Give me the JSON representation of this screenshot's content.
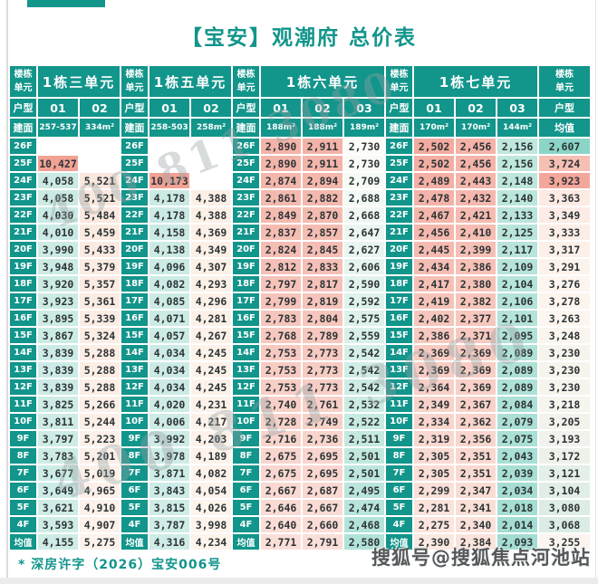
{
  "page": {
    "title": "【宝安】观潮府 总价表",
    "footnote": "* 深房许字（2026）宝安006号",
    "diagonal_watermark": "400 811 3080",
    "stamp_watermark": "搜狐号@搜狐焦点河池站"
  },
  "colors": {
    "teal": "#12958b",
    "title_text": "#12958b",
    "number_text": "#2e3436",
    "outlier_bg": "#f1a295",
    "empty_bg": "#ffffff",
    "avg_scale": {
      "low": "#8bd5c7",
      "mid": "#fdf6f0",
      "high": "#f3a79a"
    }
  },
  "table": {
    "corner_label_lines": [
      "楼栋",
      "单元"
    ],
    "row2_label": "户型",
    "row3_label": "建面",
    "avg_header_label": "均值",
    "avg_row_label": "均值",
    "floors": [
      "26F",
      "25F",
      "24F",
      "23F",
      "22F",
      "21F",
      "20F",
      "19F",
      "18F",
      "17F",
      "16F",
      "15F",
      "14F",
      "13F",
      "12F",
      "11F",
      "10F",
      "9F",
      "8F",
      "7F",
      "6F",
      "5F",
      "4F"
    ],
    "groups": [
      {
        "name": "1栋三单元",
        "units": [
          "01",
          "02"
        ],
        "areas": [
          "257-537",
          "334m²"
        ],
        "col_colors": [
          {
            "top": "#cbeae4",
            "bottom": "#cfece7"
          },
          {
            "top": "#fae7dd",
            "bottom": "#fdf3ec"
          }
        ],
        "columns": [
          [
            "",
            "10,427",
            "4,058",
            "4,058",
            "4,030",
            "4,010",
            "3,990",
            "3,948",
            "3,920",
            "3,923",
            "3,895",
            "3,867",
            "3,839",
            "3,839",
            "3,839",
            "3,825",
            "3,811",
            "3,797",
            "3,783",
            "3,677",
            "3,649",
            "3,621",
            "3,593",
            "4,155"
          ],
          [
            "",
            "",
            "5,521",
            "5,521",
            "5,484",
            "5,459",
            "5,433",
            "5,379",
            "5,357",
            "5,361",
            "5,339",
            "5,324",
            "5,288",
            "5,288",
            "5,288",
            "5,266",
            "5,244",
            "5,223",
            "5,201",
            "5,019",
            "4,965",
            "4,910",
            "4,907",
            "5,275"
          ]
        ]
      },
      {
        "name": "1栋五单元",
        "units": [
          "01",
          "02"
        ],
        "areas": [
          "258-503",
          "258m²"
        ],
        "col_colors": [
          {
            "top": "#cbeae4",
            "bottom": "#cfece7"
          },
          {
            "top": "#fcefe5",
            "bottom": "#fdf4ec"
          }
        ],
        "columns": [
          [
            "",
            "",
            "10,173",
            "4,178",
            "4,178",
            "4,158",
            "4,138",
            "4,096",
            "4,082",
            "4,085",
            "4,071",
            "4,057",
            "4,034",
            "4,034",
            "4,034",
            "4,020",
            "4,006",
            "3,992",
            "3,978",
            "3,871",
            "3,843",
            "3,815",
            "3,787",
            "4,316"
          ],
          [
            "",
            "",
            "",
            "4,388",
            "4,388",
            "4,369",
            "4,349",
            "4,307",
            "4,293",
            "4,296",
            "4,281",
            "4,267",
            "4,245",
            "4,245",
            "4,245",
            "4,231",
            "4,217",
            "4,203",
            "4,189",
            "4,082",
            "4,054",
            "4,026",
            "3,998",
            "4,234"
          ]
        ]
      },
      {
        "name": "1栋六单元",
        "units": [
          "01",
          "02",
          "03"
        ],
        "areas": [
          "188m²",
          "188m²",
          "189m²"
        ],
        "col_colors": [
          {
            "top": "#f3b3a8",
            "bottom": "#fadfd8"
          },
          {
            "top": "#f3b3a8",
            "bottom": "#fadfd8"
          },
          {
            "top": "#fdfcf8",
            "bottom": "#b0e2d8"
          }
        ],
        "columns": [
          [
            "2,890",
            "2,890",
            "2,874",
            "2,861",
            "2,849",
            "2,837",
            "2,824",
            "2,812",
            "2,797",
            "2,799",
            "2,783",
            "2,768",
            "2,753",
            "2,753",
            "2,753",
            "2,740",
            "2,728",
            "2,716",
            "2,675",
            "2,675",
            "2,667",
            "2,646",
            "2,640",
            "2,771"
          ],
          [
            "2,911",
            "2,911",
            "2,894",
            "2,882",
            "2,870",
            "2,857",
            "2,845",
            "2,833",
            "2,817",
            "2,819",
            "2,804",
            "2,789",
            "2,773",
            "2,773",
            "2,773",
            "2,761",
            "2,749",
            "2,736",
            "2,695",
            "2,695",
            "2,687",
            "2,667",
            "2,660",
            "2,791"
          ],
          [
            "2,730",
            "2,730",
            "2,709",
            "2,688",
            "2,668",
            "2,647",
            "2,627",
            "2,606",
            "2,590",
            "2,592",
            "2,575",
            "2,559",
            "2,542",
            "2,542",
            "2,542",
            "2,532",
            "2,522",
            "2,511",
            "2,501",
            "2,501",
            "2,495",
            "2,474",
            "2,468",
            "2,580"
          ]
        ]
      },
      {
        "name": "1栋七单元",
        "units": [
          "01",
          "02",
          "03"
        ],
        "areas": [
          "170m²",
          "170m²",
          "144m²"
        ],
        "col_colors": [
          {
            "top": "#f3aba0",
            "bottom": "#fbe8e1"
          },
          {
            "top": "#f5b2a7",
            "bottom": "#fae3db"
          },
          {
            "top": "#bfe7de",
            "bottom": "#a3ddd2"
          }
        ],
        "columns": [
          [
            "2,502",
            "2,502",
            "2,489",
            "2,478",
            "2,467",
            "2,456",
            "2,445",
            "2,434",
            "2,417",
            "2,419",
            "2,402",
            "2,386",
            "2,369",
            "2,369",
            "2,364",
            "2,349",
            "2,334",
            "2,319",
            "2,305",
            "2,305",
            "2,299",
            "2,281",
            "2,275",
            "2,390"
          ],
          [
            "2,456",
            "2,456",
            "2,443",
            "2,432",
            "2,421",
            "2,410",
            "2,399",
            "2,386",
            "2,380",
            "2,382",
            "2,377",
            "2,371",
            "2,369",
            "2,369",
            "2,369",
            "2,367",
            "2,362",
            "2,356",
            "2,351",
            "2,351",
            "2,347",
            "2,341",
            "2,340",
            "2,384"
          ],
          [
            "2,156",
            "2,156",
            "2,148",
            "2,140",
            "2,133",
            "2,125",
            "2,117",
            "2,109",
            "2,104",
            "2,106",
            "2,101",
            "2,095",
            "2,089",
            "2,089",
            "2,089",
            "2,084",
            "2,079",
            "2,075",
            "2,043",
            "2,039",
            "2,034",
            "2,018",
            "2,014",
            "2,093"
          ]
        ]
      }
    ],
    "avg_column": [
      "2,607",
      "3,724",
      "3,923",
      "3,363",
      "3,349",
      "3,333",
      "3,317",
      "3,291",
      "3,276",
      "3,278",
      "3,263",
      "3,248",
      "3,230",
      "3,230",
      "3,230",
      "3,218",
      "3,205",
      "3,193",
      "3,172",
      "3,121",
      "3,104",
      "3,080",
      "3,068",
      "3,255"
    ]
  }
}
